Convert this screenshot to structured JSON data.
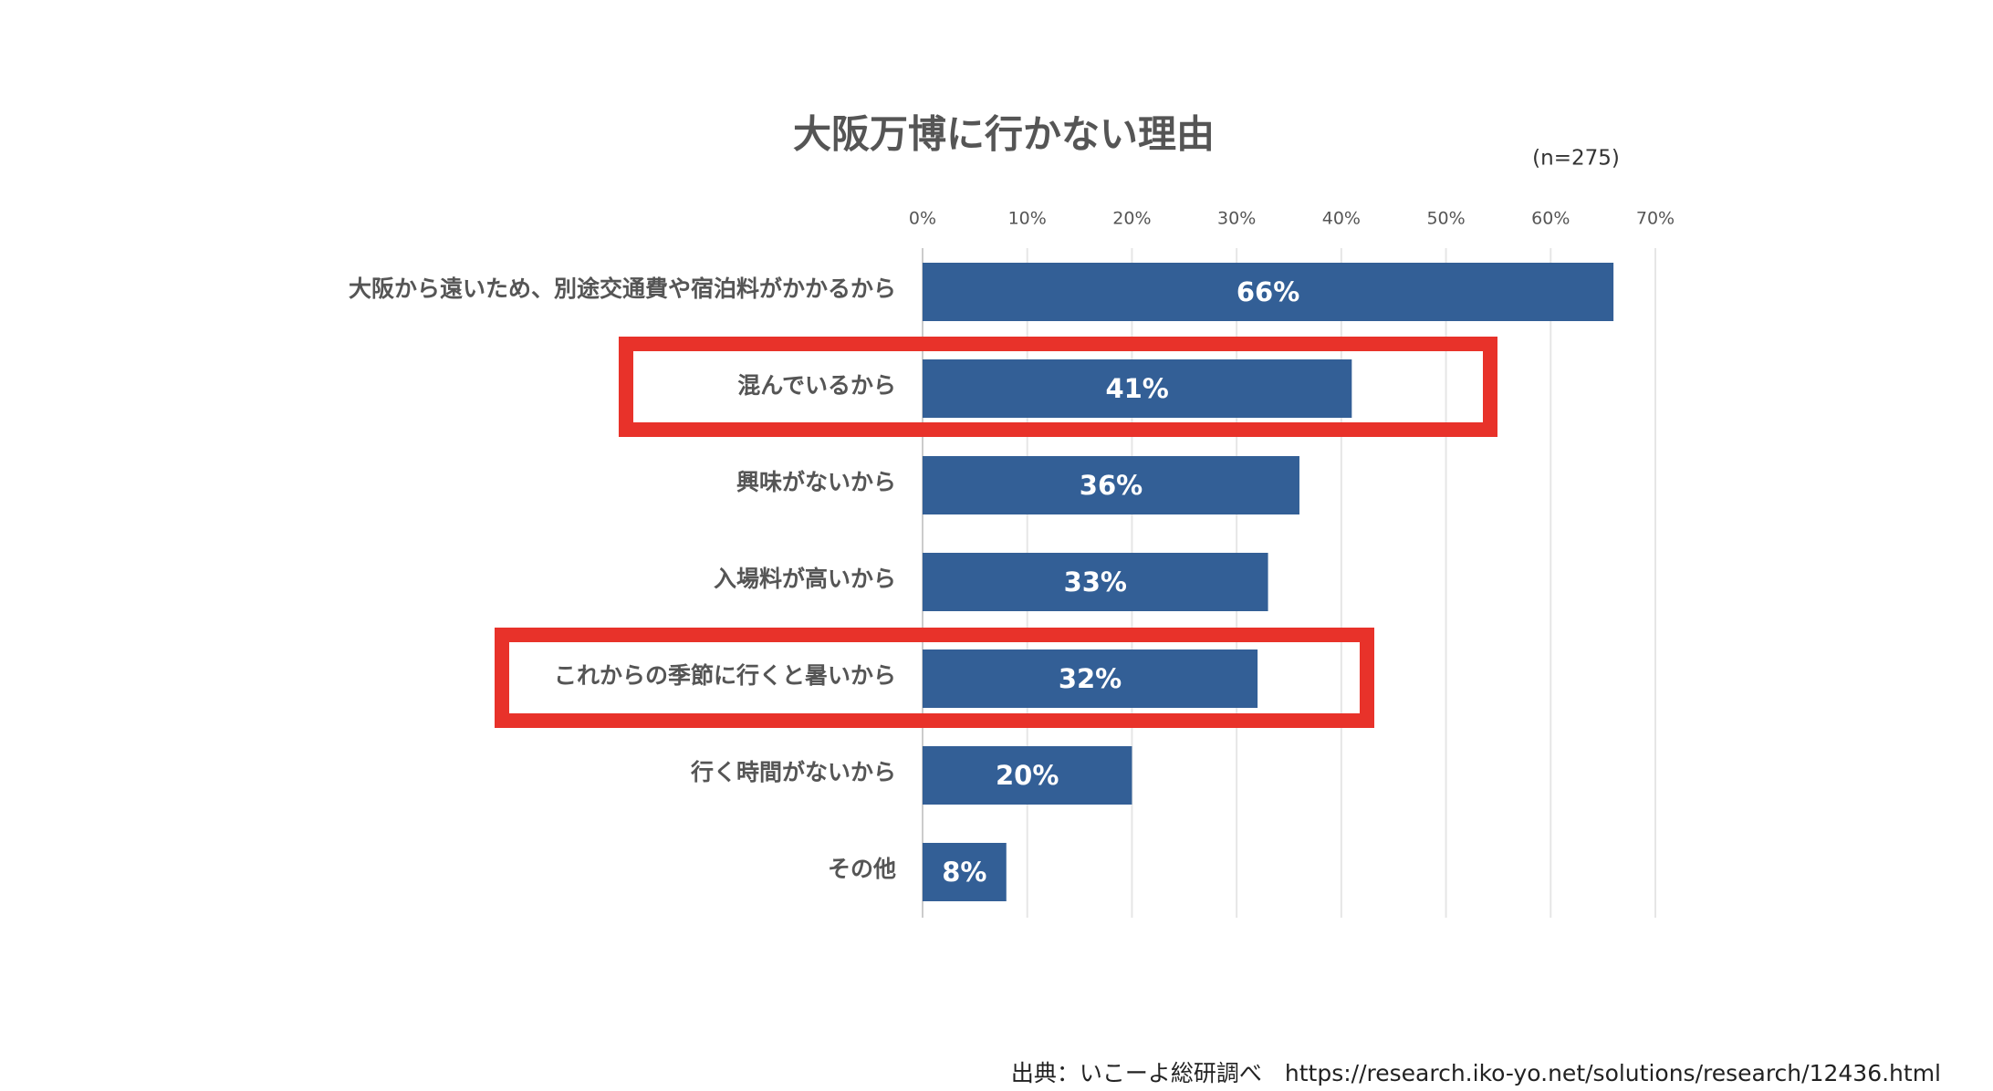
{
  "chart_data": {
    "type": "bar",
    "orientation": "horizontal",
    "title": "大阪万博に行かない理由",
    "subtitle": "(n=275)",
    "categories": [
      "大阪から遠いため、別途交通費や宿泊料がかかるから",
      "混んでいるから",
      "興味がないから",
      "入場料が高いから",
      "これからの季節に行くと暑いから",
      "行く時間がないから",
      "その他"
    ],
    "values": [
      66,
      41,
      36,
      33,
      32,
      20,
      8
    ],
    "value_labels": [
      "66%",
      "41%",
      "36%",
      "33%",
      "32%",
      "20%",
      "8%"
    ],
    "color": "#335f96",
    "xlim": [
      0,
      70
    ],
    "xticks": [
      {
        "value": 0,
        "label": "0%"
      },
      {
        "value": 10,
        "label": "10%"
      },
      {
        "value": 20,
        "label": "20%"
      },
      {
        "value": 30,
        "label": "30%"
      },
      {
        "value": 40,
        "label": "40%"
      },
      {
        "value": 50,
        "label": "50%"
      },
      {
        "value": 60,
        "label": "60%"
      },
      {
        "value": 70,
        "label": "70%"
      }
    ],
    "grid": true,
    "source": "出典：いこーよ総研調べ　https://research.iko-yo.net/solutions/research/12436.html"
  }
}
